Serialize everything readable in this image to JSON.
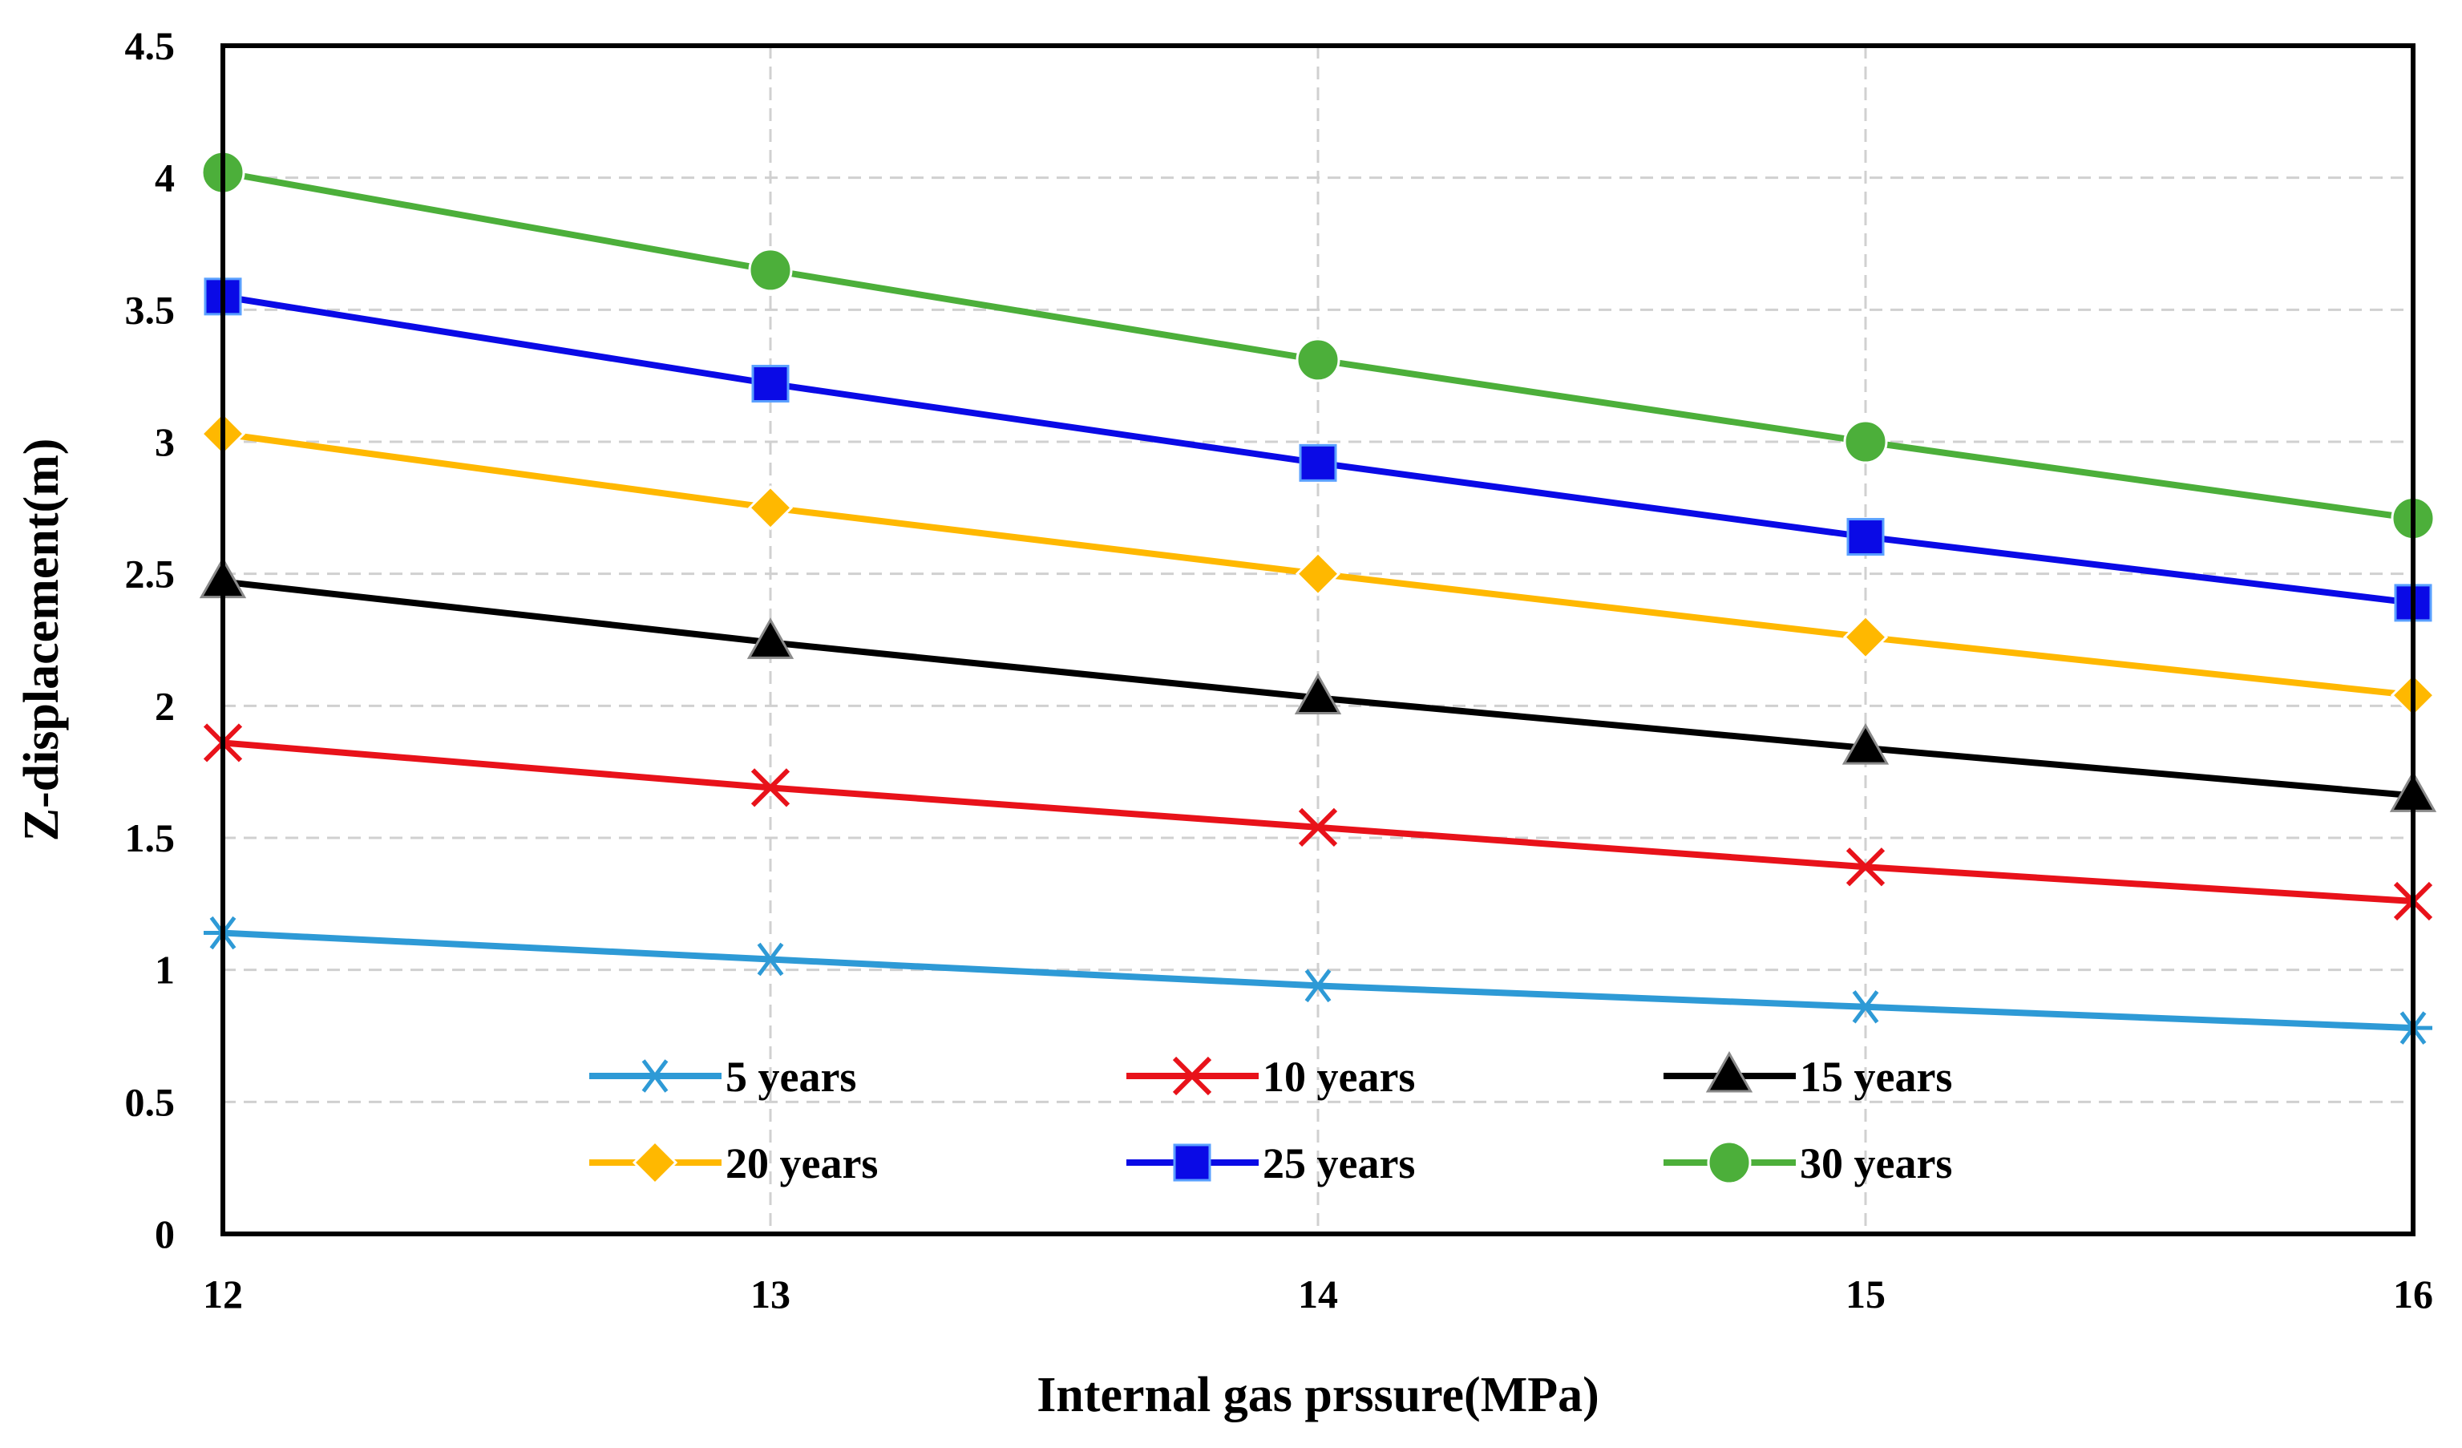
{
  "chart_data": {
    "type": "line",
    "title": "",
    "xlabel": "Internal gas prssure(MPa)",
    "ylabel": "Z-displacement(m)",
    "x": [
      12,
      13,
      14,
      15,
      16
    ],
    "xlim": [
      12,
      16
    ],
    "ylim": [
      0,
      4.5
    ],
    "x_ticks": [
      "12",
      "13",
      "14",
      "15",
      "16"
    ],
    "y_ticks": [
      "0",
      "0.5",
      "1",
      "1.5",
      "2",
      "2.5",
      "3",
      "3.5",
      "4",
      "4.5"
    ],
    "grid": true,
    "legend_position": "bottom-center",
    "series": [
      {
        "name": "5 years",
        "marker": "asterisk",
        "color": "#2E9AD6",
        "values": [
          1.14,
          1.04,
          0.94,
          0.86,
          0.78
        ]
      },
      {
        "name": "10 years",
        "marker": "x",
        "color": "#E8121A",
        "values": [
          1.86,
          1.69,
          1.54,
          1.39,
          1.26
        ]
      },
      {
        "name": "15 years",
        "marker": "triangle",
        "color": "#000000",
        "values": [
          2.47,
          2.24,
          2.03,
          1.84,
          1.66
        ]
      },
      {
        "name": "20 years",
        "marker": "diamond",
        "color": "#FFB800",
        "values": [
          3.03,
          2.75,
          2.5,
          2.26,
          2.04
        ]
      },
      {
        "name": "25 years",
        "marker": "square",
        "color": "#0A0AE6",
        "values": [
          3.55,
          3.22,
          2.92,
          2.64,
          2.39
        ]
      },
      {
        "name": "30 years",
        "marker": "circle",
        "color": "#4CAF3A",
        "values": [
          4.02,
          3.65,
          3.31,
          3.0,
          2.71
        ]
      }
    ]
  }
}
